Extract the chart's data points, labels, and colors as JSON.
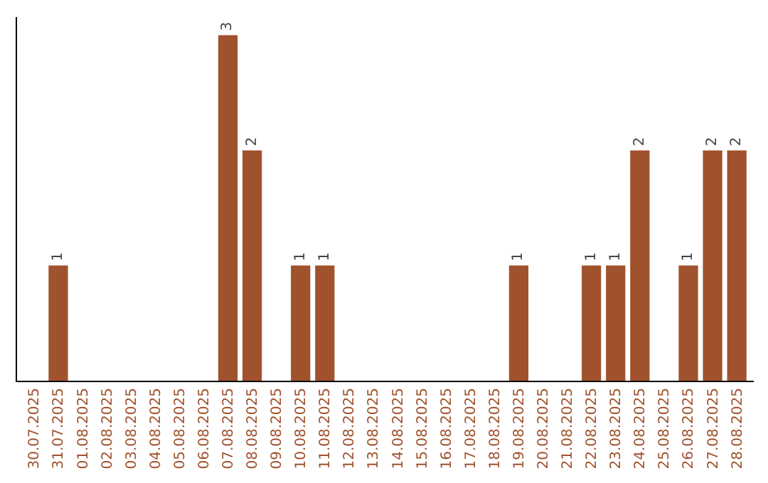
{
  "chart_data": {
    "type": "bar",
    "categories": [
      "30.07.2025",
      "31.07.2025",
      "01.08.2025",
      "02.08.2025",
      "03.08.2025",
      "04.08.2025",
      "05.08.2025",
      "06.08.2025",
      "07.08.2025",
      "08.08.2025",
      "09.08.2025",
      "10.08.2025",
      "11.08.2025",
      "12.08.2025",
      "13.08.2025",
      "14.08.2025",
      "15.08.2025",
      "16.08.2025",
      "17.08.2025",
      "18.08.2025",
      "19.08.2025",
      "20.08.2025",
      "21.08.2025",
      "22.08.2025",
      "23.08.2025",
      "24.08.2025",
      "25.08.2025",
      "26.08.2025",
      "27.08.2025",
      "28.08.2025"
    ],
    "values": [
      0,
      1,
      0,
      0,
      0,
      0,
      0,
      0,
      3,
      2,
      0,
      1,
      1,
      0,
      0,
      0,
      0,
      0,
      0,
      0,
      1,
      0,
      0,
      1,
      1,
      2,
      0,
      1,
      2,
      2
    ],
    "value_labels": [
      null,
      "1",
      null,
      null,
      null,
      null,
      null,
      null,
      "3",
      "2",
      null,
      "1",
      "1",
      null,
      null,
      null,
      null,
      null,
      null,
      null,
      "1",
      null,
      null,
      "1",
      "1",
      "2",
      null,
      "1",
      "2",
      "2"
    ],
    "color": "#a0522d",
    "tick_labels": "x"
  }
}
